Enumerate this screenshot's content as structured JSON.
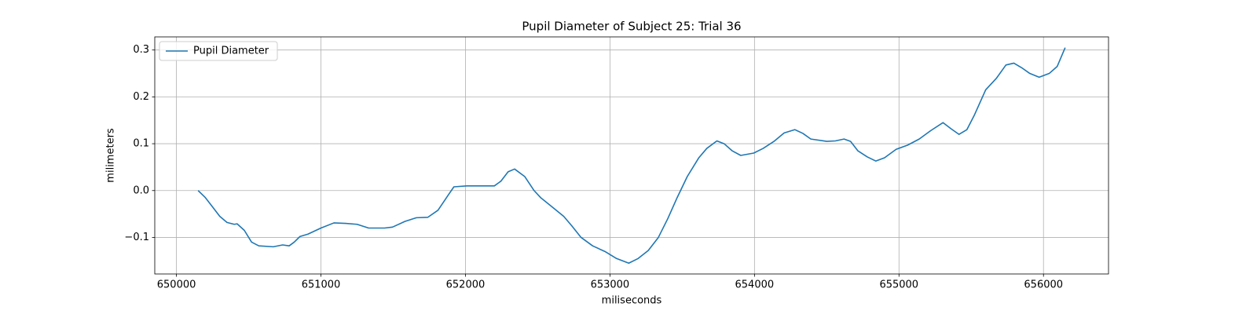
{
  "chart_data": {
    "type": "line",
    "title": "Pupil Diameter of Subject 25: Trial 36",
    "x_label": "miliseconds",
    "y_label": "milimeters",
    "grid": true,
    "legend": "upper left",
    "xlim": [
      649850,
      656450
    ],
    "xticks": [
      650000,
      651000,
      652000,
      653000,
      654000,
      655000,
      656000
    ],
    "ylim": [
      -0.178,
      0.328
    ],
    "yticks": [
      {
        "value": -0.1,
        "label": "−0.1"
      },
      {
        "value": 0,
        "label": "0.0"
      },
      0.1,
      0.2,
      0.3
    ],
    "x": [
      650150,
      650200,
      650250,
      650300,
      650350,
      650400,
      650420,
      650470,
      650520,
      650570,
      650670,
      650735,
      650780,
      650815,
      650855,
      650910,
      651000,
      651090,
      651170,
      651250,
      651330,
      651440,
      651495,
      651580,
      651660,
      651740,
      651810,
      651880,
      651920,
      652010,
      652200,
      652245,
      652295,
      652340,
      652410,
      652475,
      652520,
      652600,
      652680,
      652735,
      652800,
      652880,
      652965,
      653045,
      653130,
      653195,
      653265,
      653335,
      653400,
      653465,
      653535,
      653615,
      653670,
      653740,
      653790,
      653845,
      653905,
      653995,
      654060,
      654135,
      654205,
      654280,
      654335,
      654390,
      654500,
      654560,
      654620,
      654665,
      654715,
      654780,
      654840,
      654900,
      654980,
      655060,
      655140,
      655220,
      655305,
      655360,
      655415,
      655470,
      655520,
      655600,
      655675,
      655740,
      655795,
      655850,
      655905,
      655970,
      656040,
      656095,
      656150
    ],
    "series": [
      {
        "name": "Pupil Diameter",
        "color": "#1f77b4",
        "values": [
          0.0,
          -0.015,
          -0.035,
          -0.055,
          -0.068,
          -0.072,
          -0.071,
          -0.085,
          -0.11,
          -0.118,
          -0.12,
          -0.116,
          -0.118,
          -0.11,
          -0.098,
          -0.093,
          -0.08,
          -0.069,
          -0.07,
          -0.072,
          -0.08,
          -0.08,
          -0.078,
          -0.066,
          -0.058,
          -0.057,
          -0.042,
          -0.01,
          0.008,
          0.01,
          0.01,
          0.02,
          0.04,
          0.046,
          0.03,
          0.0,
          -0.015,
          -0.035,
          -0.055,
          -0.075,
          -0.1,
          -0.118,
          -0.13,
          -0.145,
          -0.155,
          -0.145,
          -0.128,
          -0.1,
          -0.06,
          -0.015,
          0.03,
          0.07,
          0.09,
          0.106,
          0.1,
          0.085,
          0.075,
          0.08,
          0.09,
          0.105,
          0.123,
          0.13,
          0.122,
          0.11,
          0.105,
          0.106,
          0.11,
          0.105,
          0.085,
          0.072,
          0.063,
          0.07,
          0.088,
          0.097,
          0.11,
          0.128,
          0.145,
          0.132,
          0.12,
          0.13,
          0.16,
          0.215,
          0.24,
          0.268,
          0.272,
          0.262,
          0.25,
          0.242,
          0.25,
          0.265,
          0.305
        ]
      }
    ]
  }
}
